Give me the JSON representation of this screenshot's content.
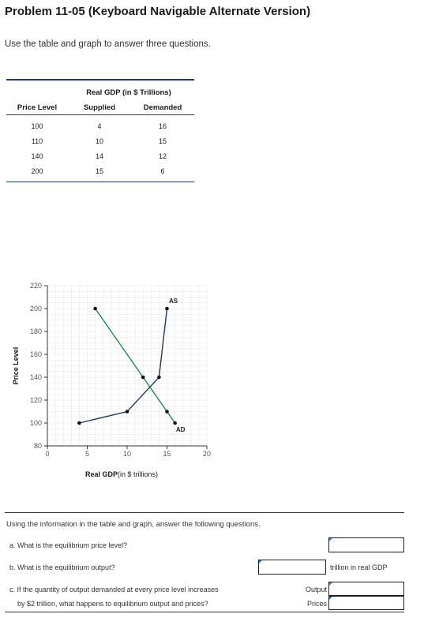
{
  "header": {
    "title": "Problem 11-05 (Keyboard Navigable Alternate Version)",
    "intro": "Use the table and graph to answer three questions."
  },
  "table": {
    "group_header": "Real GDP (in $ Trillions)",
    "col_price": "Price Level",
    "col_supplied": "Supplied",
    "col_demanded": "Demanded",
    "rows": [
      {
        "price": "100",
        "supplied": "4",
        "demanded": "16"
      },
      {
        "price": "110",
        "supplied": "10",
        "demanded": "15"
      },
      {
        "price": "140",
        "supplied": "14",
        "demanded": "12"
      },
      {
        "price": "200",
        "supplied": "15",
        "demanded": "6"
      }
    ]
  },
  "chart_data": {
    "type": "line",
    "xlabel_bold": "Real GDP",
    "xlabel_rest": "(in $ trillions)",
    "ylabel": "Price Level",
    "xlim": [
      0,
      20
    ],
    "ylim": [
      80,
      220
    ],
    "x_ticks": [
      "0",
      "5",
      "10",
      "15",
      "20"
    ],
    "y_ticks": [
      "80",
      "100",
      "120",
      "140",
      "160",
      "180",
      "200",
      "220"
    ],
    "grid": true,
    "series": [
      {
        "name": "AS",
        "color": "#1f3a5f",
        "points": [
          [
            4,
            100
          ],
          [
            10,
            110
          ],
          [
            14,
            140
          ],
          [
            15,
            200
          ]
        ]
      },
      {
        "name": "AD",
        "color": "#1a8a4a",
        "points": [
          [
            6,
            200
          ],
          [
            12,
            140
          ],
          [
            15,
            110
          ],
          [
            16,
            100
          ]
        ]
      }
    ]
  },
  "questions": {
    "intro": "Using the information in the table and graph, answer the following questions.",
    "a_text": "a. What is the equilibrium price level?",
    "a_value": "",
    "b_text": "b. What is the equilibrium output?",
    "b_value": "",
    "b_unit": "trillion in real GDP",
    "c_line1": "c. If the quantity of output demanded at every price level increases",
    "c_line2": "by $2 trillion, what happens to equilibrium output and prices?",
    "c_output_label": "Output",
    "c_prices_label": "Prices",
    "c_output_value": "",
    "c_prices_value": ""
  },
  "colors": {
    "as_line": "#1f3a5f",
    "ad_line": "#1a8a4a",
    "rule": "#1f3a5f",
    "input_marker": "#2a7fd4"
  }
}
